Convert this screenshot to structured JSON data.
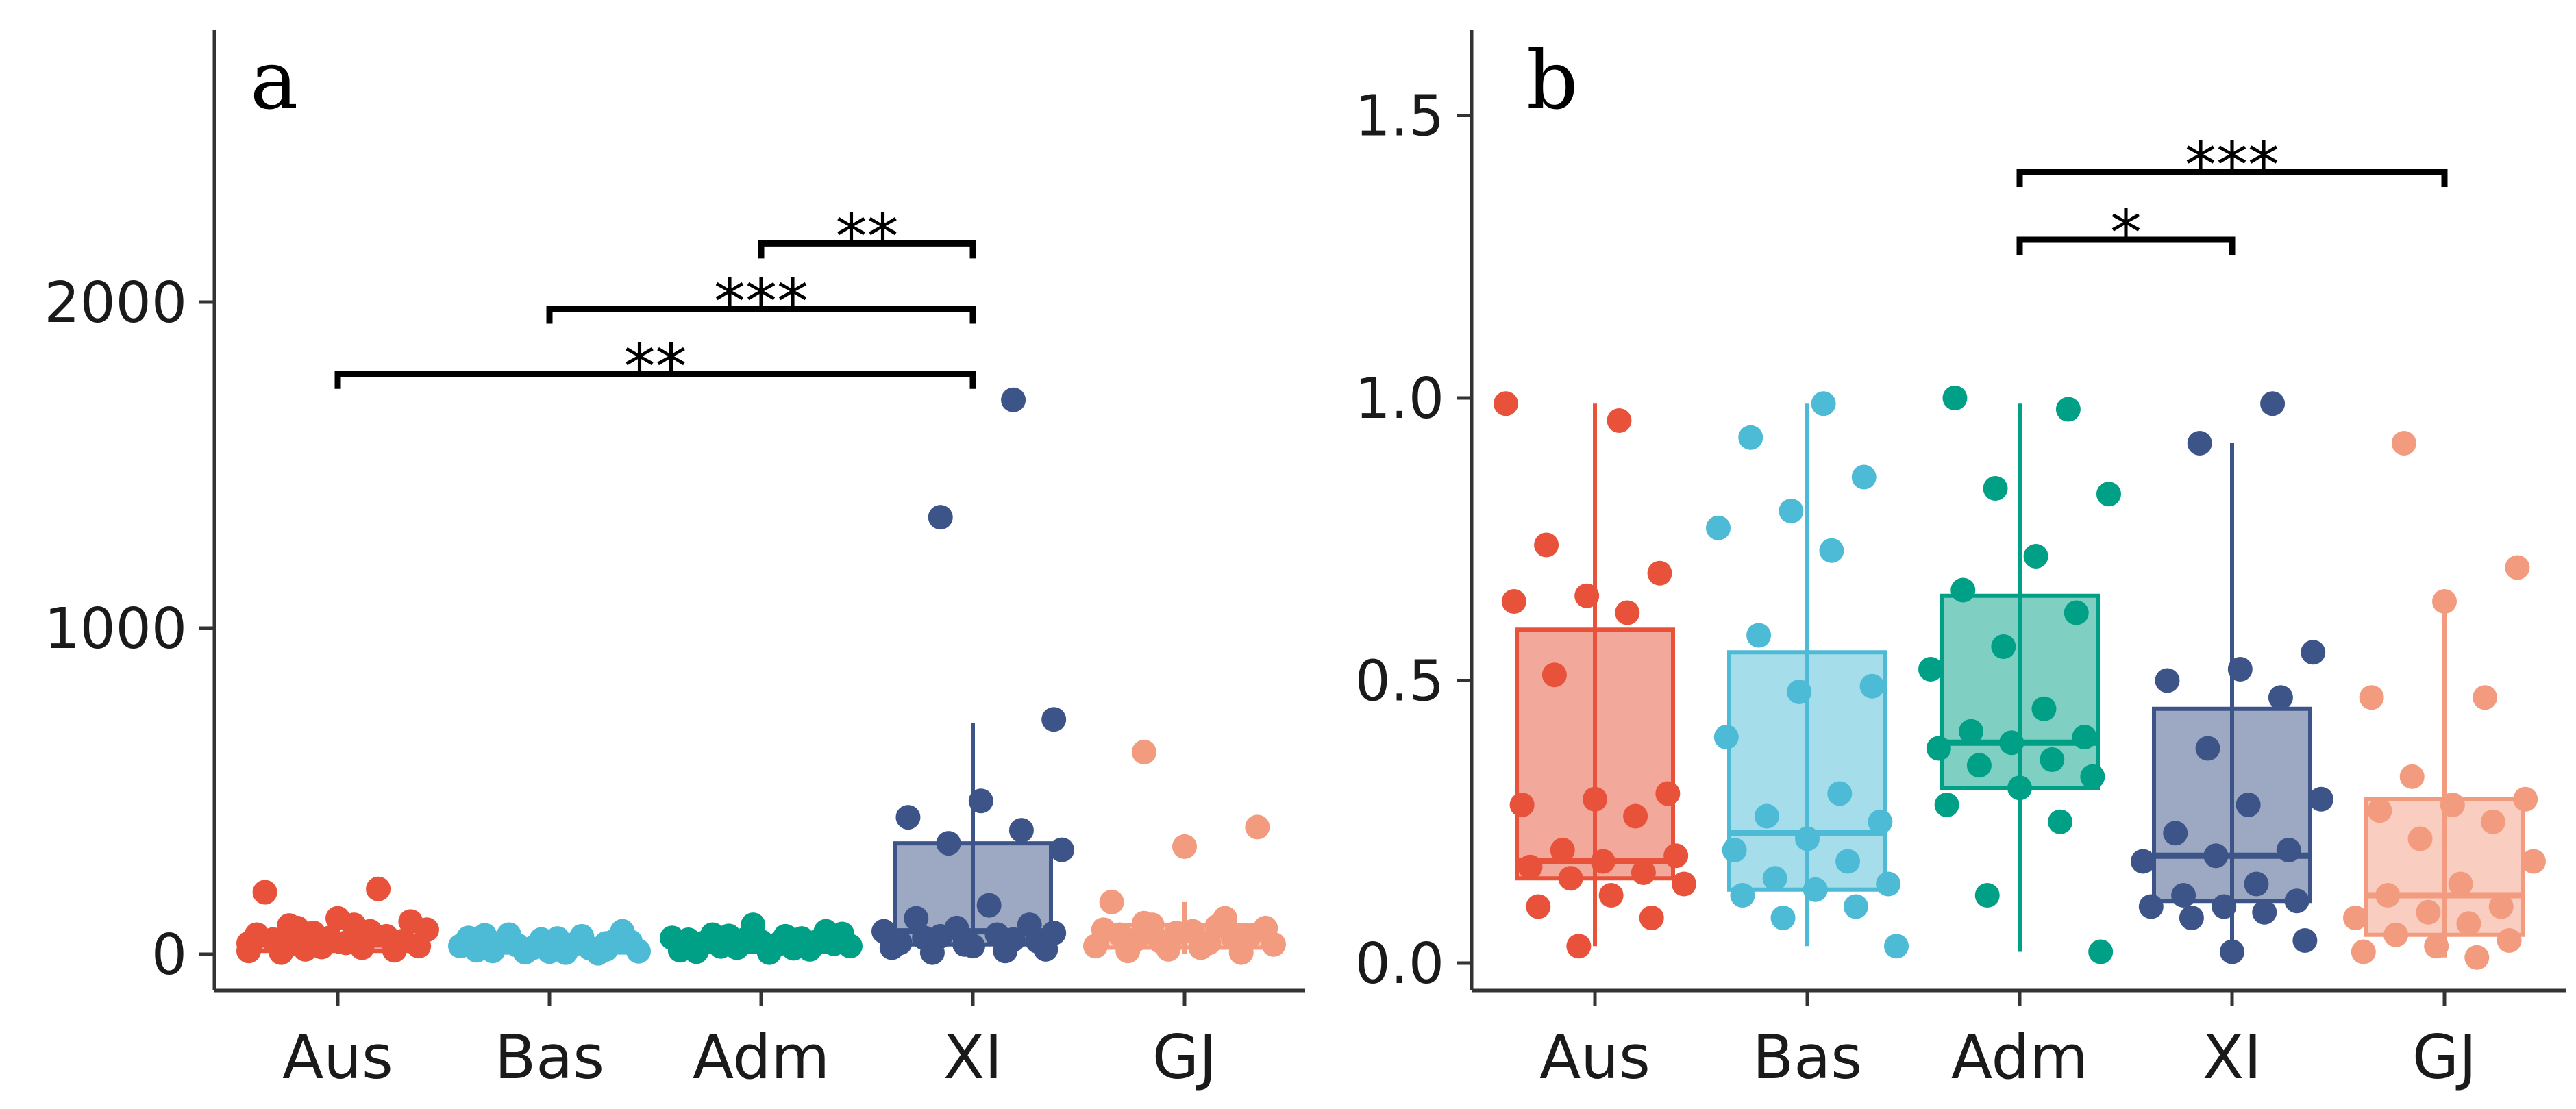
{
  "figure": {
    "palette": {
      "Aus": "#e8523a",
      "Bas": "#4dbbd5",
      "Adm": "#00a087",
      "XI": "#3c5488",
      "GJ": "#f39b7f"
    }
  },
  "chart_data": [
    {
      "panel_label": "a",
      "type": "box",
      "categories": [
        "Aus",
        "Bas",
        "Adm",
        "XI",
        "GJ"
      ],
      "ylim": [
        -100,
        2850
      ],
      "yticks": [
        0,
        1000,
        2000
      ],
      "ytick_labels": [
        "0",
        "1000",
        "2000"
      ],
      "grid": false,
      "boxes": [
        {
          "q1": 10,
          "median": 30,
          "q3": 55,
          "whisker_low": 0,
          "whisker_high": 100
        },
        {
          "q1": 5,
          "median": 15,
          "q3": 35,
          "whisker_low": 0,
          "whisker_high": 60
        },
        {
          "q1": 8,
          "median": 20,
          "q3": 40,
          "whisker_low": 0,
          "whisker_high": 70
        },
        {
          "q1": 30,
          "median": 70,
          "q3": 340,
          "whisker_low": 0,
          "whisker_high": 710
        },
        {
          "q1": 20,
          "median": 60,
          "q3": 90,
          "whisker_low": 0,
          "whisker_high": 160
        }
      ],
      "points": [
        [
          10,
          20,
          30,
          40,
          50,
          60,
          70,
          80,
          100,
          110,
          190,
          200,
          15,
          25,
          35,
          45,
          55,
          65,
          75,
          90,
          5,
          12,
          22,
          33,
          44,
          88
        ],
        [
          5,
          10,
          15,
          20,
          25,
          30,
          35,
          40,
          45,
          50,
          55,
          60,
          70,
          8,
          12,
          18,
          28,
          38,
          48,
          58,
          3,
          6,
          9,
          14,
          22,
          33
        ],
        [
          10,
          15,
          20,
          25,
          30,
          35,
          40,
          45,
          50,
          55,
          60,
          70,
          90,
          12,
          18,
          24,
          32,
          38,
          44,
          48,
          56,
          62,
          5,
          8
        ],
        [
          1700,
          1340,
          720,
          470,
          420,
          380,
          340,
          320,
          150,
          110,
          90,
          80,
          70,
          60,
          50,
          40,
          30,
          20,
          10,
          5,
          15,
          25,
          35,
          45,
          55,
          65
        ],
        [
          620,
          390,
          330,
          160,
          110,
          90,
          80,
          70,
          60,
          50,
          40,
          30,
          20,
          10,
          5,
          15,
          25,
          35,
          45,
          55,
          65,
          75,
          85,
          95
        ]
      ],
      "significance": [
        {
          "from": "XI",
          "to": "Adm",
          "label": "**",
          "y": 2180
        },
        {
          "from": "XI",
          "to": "Bas",
          "label": "***",
          "y": 1980
        },
        {
          "from": "XI",
          "to": "Aus",
          "label": "**",
          "y": 1780
        }
      ]
    },
    {
      "panel_label": "b",
      "type": "box",
      "categories": [
        "Aus",
        "Bas",
        "Adm",
        "XI",
        "GJ"
      ],
      "ylim": [
        -0.05,
        1.65
      ],
      "yticks": [
        0.0,
        0.5,
        1.0,
        1.5
      ],
      "ytick_labels": [
        "0.0",
        "0.5",
        "1.0",
        "1.5"
      ],
      "grid": false,
      "boxes": [
        {
          "q1": 0.15,
          "median": 0.18,
          "q3": 0.59,
          "whisker_low": 0.03,
          "whisker_high": 0.99
        },
        {
          "q1": 0.13,
          "median": 0.23,
          "q3": 0.55,
          "whisker_low": 0.03,
          "whisker_high": 0.99
        },
        {
          "q1": 0.31,
          "median": 0.39,
          "q3": 0.65,
          "whisker_low": 0.02,
          "whisker_high": 0.99
        },
        {
          "q1": 0.11,
          "median": 0.19,
          "q3": 0.45,
          "whisker_low": 0.01,
          "whisker_high": 0.92
        },
        {
          "q1": 0.05,
          "median": 0.12,
          "q3": 0.29,
          "whisker_low": 0.01,
          "whisker_high": 0.64
        }
      ],
      "points": [
        [
          0.99,
          0.96,
          0.74,
          0.69,
          0.65,
          0.64,
          0.62,
          0.51,
          0.3,
          0.29,
          0.28,
          0.26,
          0.2,
          0.19,
          0.18,
          0.17,
          0.16,
          0.15,
          0.14,
          0.12,
          0.1,
          0.08,
          0.03
        ],
        [
          0.99,
          0.93,
          0.86,
          0.8,
          0.77,
          0.73,
          0.58,
          0.49,
          0.48,
          0.4,
          0.3,
          0.26,
          0.25,
          0.22,
          0.2,
          0.18,
          0.15,
          0.14,
          0.13,
          0.12,
          0.1,
          0.08,
          0.03
        ],
        [
          1.0,
          0.98,
          0.84,
          0.83,
          0.72,
          0.66,
          0.62,
          0.56,
          0.52,
          0.45,
          0.41,
          0.4,
          0.39,
          0.38,
          0.36,
          0.35,
          0.33,
          0.31,
          0.28,
          0.25,
          0.12,
          0.02
        ],
        [
          0.99,
          0.92,
          0.55,
          0.52,
          0.5,
          0.47,
          0.38,
          0.29,
          0.28,
          0.23,
          0.2,
          0.19,
          0.18,
          0.14,
          0.12,
          0.11,
          0.1,
          0.1,
          0.09,
          0.08,
          0.04,
          0.02
        ],
        [
          0.92,
          0.7,
          0.64,
          0.47,
          0.47,
          0.33,
          0.29,
          0.28,
          0.27,
          0.25,
          0.22,
          0.18,
          0.14,
          0.12,
          0.1,
          0.09,
          0.08,
          0.07,
          0.05,
          0.04,
          0.03,
          0.02,
          0.01
        ]
      ],
      "significance": [
        {
          "from": "Adm",
          "to": "GJ",
          "label": "***",
          "y": 1.4
        },
        {
          "from": "Adm",
          "to": "XI",
          "label": "*",
          "y": 1.28
        }
      ]
    }
  ]
}
